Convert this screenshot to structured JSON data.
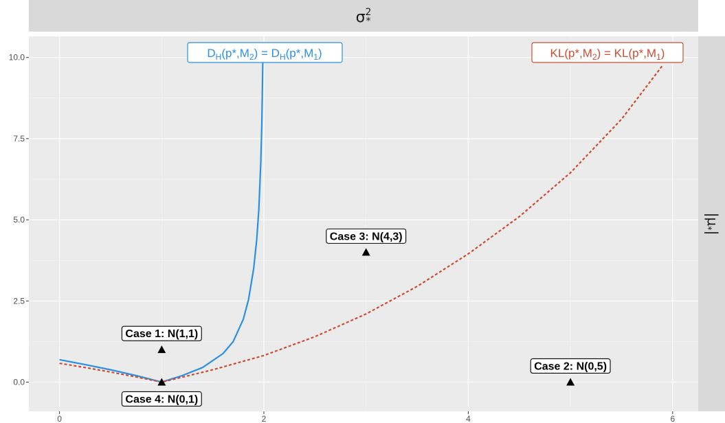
{
  "chart_data": {
    "type": "line",
    "top_strip_label": "σ²*",
    "right_strip_label": "|μ*|",
    "xlim": [
      -0.3,
      6.25
    ],
    "ylim": [
      -0.9,
      10.65
    ],
    "x_ticks": [
      0,
      2,
      4,
      6
    ],
    "x_tick_labels": [
      "0",
      "2",
      "4",
      "6"
    ],
    "y_ticks": [
      0,
      2.5,
      5,
      7.5,
      10
    ],
    "y_tick_labels": [
      "0.0",
      "2.5",
      "5.0",
      "7.5",
      "10.0"
    ],
    "grid": true,
    "series": [
      {
        "name": "D_H(p*,M2) = D_H(p*,M1)",
        "color": "#2b8fe6",
        "linestyle": "solid",
        "x": [
          0,
          0.25,
          0.5,
          0.75,
          1.0,
          1.2,
          1.4,
          1.6,
          1.7,
          1.8,
          1.85,
          1.9,
          1.93,
          1.95,
          1.97,
          1.98,
          1.99
        ],
        "y": [
          0.69,
          0.54,
          0.38,
          0.2,
          0.0,
          0.2,
          0.45,
          0.88,
          1.25,
          1.95,
          2.55,
          3.5,
          4.4,
          5.3,
          6.8,
          8.0,
          10.0
        ]
      },
      {
        "name": "KL(p*,M2) = KL(p*,M1)",
        "color": "#cc4c33",
        "linestyle": "dashed",
        "x": [
          0,
          0.25,
          0.5,
          0.75,
          1.0,
          1.5,
          2.0,
          2.5,
          3.0,
          3.5,
          4.0,
          4.5,
          5.0,
          5.5,
          5.9
        ],
        "y": [
          0.58,
          0.45,
          0.31,
          0.16,
          0.0,
          0.38,
          0.82,
          1.4,
          2.1,
          2.95,
          3.95,
          5.1,
          6.45,
          8.1,
          9.75
        ]
      }
    ],
    "points": [
      {
        "x": 1,
        "y": 1,
        "label": "Case 1: N(1,1)",
        "label_pos": "above"
      },
      {
        "x": 5,
        "y": 0,
        "label": "Case 2: N(0,5)",
        "label_pos": "above"
      },
      {
        "x": 3,
        "y": 4,
        "label": "Case 3: N(4,3)",
        "label_pos": "above"
      },
      {
        "x": 1,
        "y": 0,
        "label": "Case 4: N(0,1)",
        "label_pos": "below"
      }
    ]
  }
}
